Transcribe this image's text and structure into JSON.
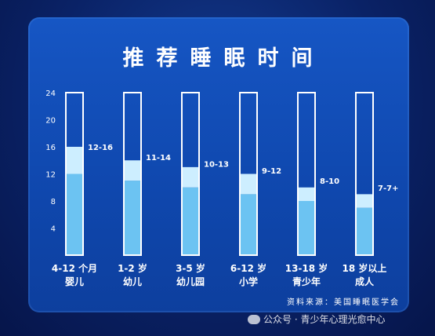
{
  "title": "推荐睡眠时间",
  "source": "资料来源：美国睡眠医学会",
  "watermark": "公众号 · 青少年心理光愈中心",
  "chart_data": {
    "type": "bar",
    "y_ticks": [
      4,
      8,
      12,
      16,
      20,
      24
    ],
    "ylim": [
      0,
      24
    ],
    "grid": false,
    "categories": [
      [
        "4-12 个月",
        "婴儿"
      ],
      [
        "1-2 岁",
        "幼儿"
      ],
      [
        "3-5 岁",
        "幼儿园"
      ],
      [
        "6-12 岁",
        "小学"
      ],
      [
        "13-18 岁",
        "青少年"
      ],
      [
        "18 岁以上",
        "成人"
      ]
    ],
    "ranges": [
      {
        "label": "12-16",
        "low": 12,
        "high": 16
      },
      {
        "label": "11-14",
        "low": 11,
        "high": 14
      },
      {
        "label": "10-13",
        "low": 10,
        "high": 13
      },
      {
        "label": "9-12",
        "low": 9,
        "high": 12
      },
      {
        "label": "8-10",
        "low": 8,
        "high": 10
      },
      {
        "label": "7-7+",
        "low": 7,
        "high": 9
      }
    ],
    "colors": {
      "frame": "#ffffff",
      "low_fill": "#6cc3f2",
      "range_fill": "#cdeeff",
      "text": "#ffffff"
    }
  }
}
